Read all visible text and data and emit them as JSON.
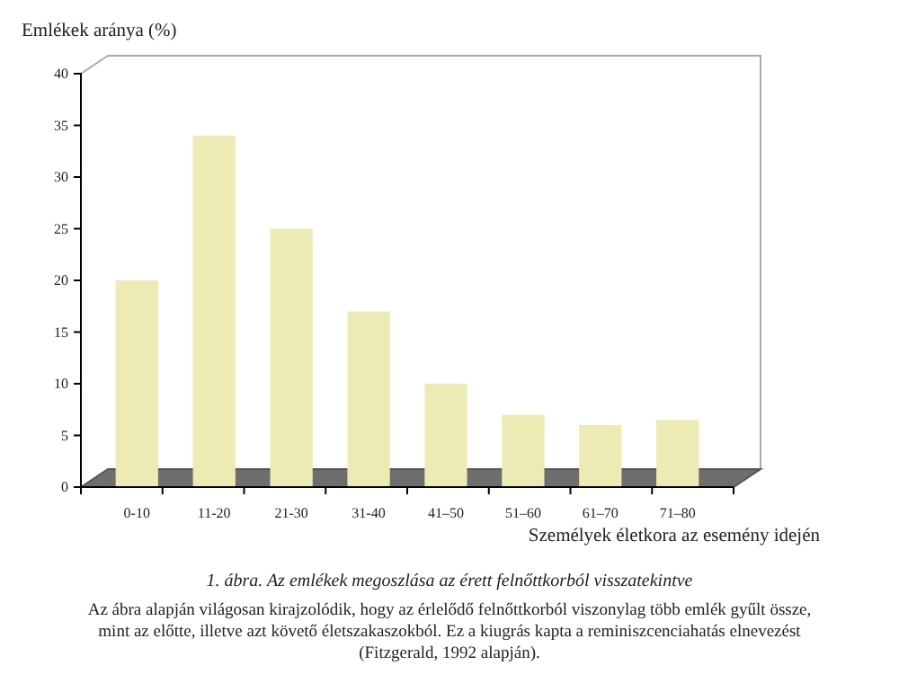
{
  "chart_data": {
    "type": "bar",
    "title": "1. ábra. Az emlékek megoszlása az érett felnőttkorból visszatekintve",
    "ylabel": "Emlékek aránya (%)",
    "xlabel": "Személyek életkora az esemény idején",
    "categories": [
      "0-10",
      "11-20",
      "21-30",
      "31-40",
      "41–50",
      "51–60",
      "61–70",
      "71–80"
    ],
    "values": [
      20,
      34,
      25,
      17,
      10,
      7,
      6,
      6.5
    ],
    "color": "#ecebb4",
    "ylim": [
      0,
      40
    ],
    "yticks": [
      0,
      5,
      10,
      15,
      20,
      25,
      30,
      35,
      40
    ],
    "grid": false,
    "annotations": [
      "Az ábra alapján világosan kirajzolódik, hogy az érlelődő felnőttkorból viszonylag több emlék gyűlt össze, mint az előtte, illetve azt követő életszakaszokból. Ez a kiugrás kapta a reminiszcenciahatás elnevezést (Fitzgerald, 1992 alapján)."
    ]
  }
}
